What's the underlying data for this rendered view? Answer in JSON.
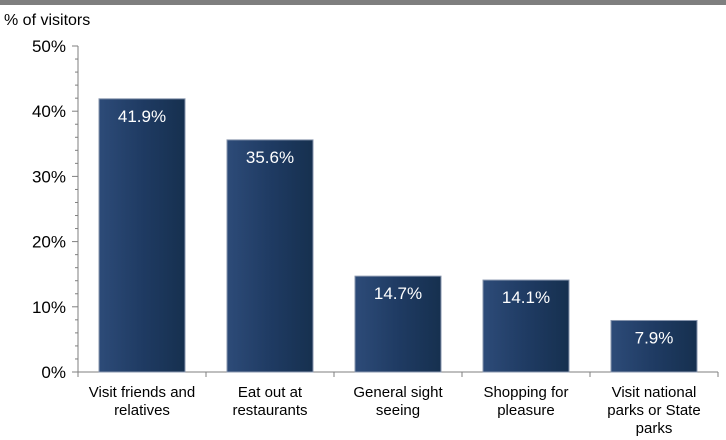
{
  "chart_data": {
    "type": "bar",
    "categories": [
      [
        "Visit friends and",
        "relatives"
      ],
      [
        "Eat out at",
        "restaurants"
      ],
      [
        "General sight",
        "seeing"
      ],
      [
        "Shopping for",
        "pleasure"
      ],
      [
        "Visit national",
        "parks or State",
        "parks"
      ]
    ],
    "values": [
      41.9,
      35.6,
      14.7,
      14.1,
      7.9
    ],
    "data_labels": [
      "41.9%",
      "35.6%",
      "14.7%",
      "14.1%",
      "7.9%"
    ],
    "ylabel": "% of visitors",
    "ylim": [
      0,
      50
    ],
    "yticks": [
      0,
      10,
      20,
      30,
      40,
      50
    ],
    "ytick_labels": [
      "0%",
      "10%",
      "20%",
      "30%",
      "40%",
      "50%"
    ],
    "grid": false,
    "legend": "none",
    "colors": {
      "bar_fill": "#1f3b63",
      "bar_edge": "#8795ad",
      "top_rule": "#7f7f7f",
      "axis": "#7f7f7f"
    }
  }
}
